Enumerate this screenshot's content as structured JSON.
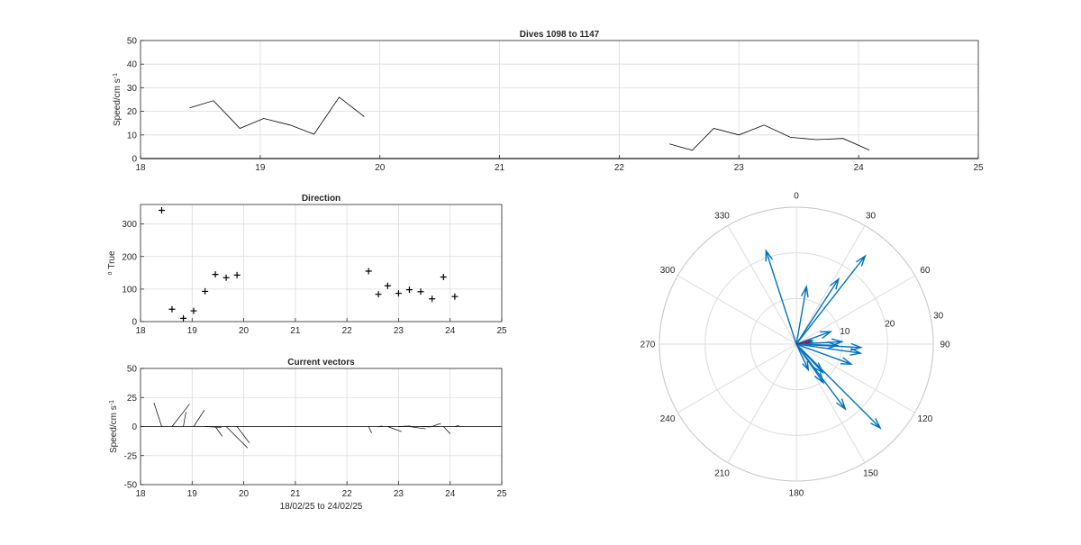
{
  "colors": {
    "axis": "#262626",
    "grid": "#dcdcdc",
    "trace": "#000000",
    "arrow": "#0072bd",
    "mean_arrow": "#a2142f",
    "background": "#ffffff"
  },
  "chart_data": [
    {
      "id": "speed",
      "type": "line",
      "title": "Dives 1098 to 1147",
      "ylabel": "Speed/cm s",
      "ylabel_superscript": "-1",
      "xlim": [
        18,
        25
      ],
      "ylim": [
        0,
        50
      ],
      "xticks": [
        "18",
        "19",
        "20",
        "21",
        "22",
        "23",
        "24",
        "25"
      ],
      "yticks": [
        "0",
        "10",
        "20",
        "30",
        "40",
        "50"
      ],
      "grid": true,
      "series": [
        {
          "x": [
            18.41,
            18.61,
            18.83,
            19.03,
            19.25,
            19.45,
            19.66,
            19.87
          ],
          "y": [
            21.5,
            24.5,
            12.8,
            17,
            14.2,
            10.3,
            26,
            17.8
          ]
        },
        {
          "x": [
            22.42,
            22.61,
            22.79,
            23.0,
            23.21,
            23.43,
            23.65,
            23.87,
            24.09
          ],
          "y": [
            6.2,
            3.5,
            12.8,
            10,
            14.2,
            9,
            8,
            8.5,
            3.6
          ]
        }
      ]
    },
    {
      "id": "direction",
      "type": "scatter",
      "title": "Direction",
      "ylabel": "True",
      "ylabel_prefix": "o",
      "xlim": [
        18,
        25
      ],
      "ylim": [
        0,
        360
      ],
      "xticks": [
        "18",
        "19",
        "20",
        "21",
        "22",
        "23",
        "24",
        "25"
      ],
      "yticks": [
        "0",
        "100",
        "200",
        "300"
      ],
      "grid": true,
      "marker": "+",
      "points": [
        {
          "x": 18.41,
          "y": 342
        },
        {
          "x": 18.61,
          "y": 38
        },
        {
          "x": 18.83,
          "y": 10
        },
        {
          "x": 19.03,
          "y": 33
        },
        {
          "x": 19.25,
          "y": 93
        },
        {
          "x": 19.45,
          "y": 145
        },
        {
          "x": 19.66,
          "y": 135
        },
        {
          "x": 19.87,
          "y": 143
        },
        {
          "x": 22.42,
          "y": 155
        },
        {
          "x": 22.61,
          "y": 84
        },
        {
          "x": 22.79,
          "y": 110
        },
        {
          "x": 23.0,
          "y": 87
        },
        {
          "x": 23.21,
          "y": 98
        },
        {
          "x": 23.43,
          "y": 92
        },
        {
          "x": 23.65,
          "y": 70
        },
        {
          "x": 23.87,
          "y": 137
        },
        {
          "x": 24.09,
          "y": 77
        }
      ]
    },
    {
      "id": "vectors",
      "type": "line",
      "subtype": "stick-plot",
      "title": "Current vectors",
      "ylabel": "Speed/cm s",
      "ylabel_superscript": "-1",
      "xlabel": "18/02/25 to 24/02/25",
      "xlim": [
        18,
        25
      ],
      "ylim": [
        -50,
        50
      ],
      "xticks": [
        "18",
        "19",
        "20",
        "21",
        "22",
        "23",
        "24",
        "25"
      ],
      "yticks": [
        "-50",
        "-25",
        "0",
        "25",
        "50"
      ],
      "grid": true,
      "sticks": [
        {
          "x": 18.41,
          "speed": 21.5,
          "dir": 342
        },
        {
          "x": 18.61,
          "speed": 24.5,
          "dir": 38
        },
        {
          "x": 18.83,
          "speed": 12.8,
          "dir": 10
        },
        {
          "x": 19.03,
          "speed": 17,
          "dir": 33
        },
        {
          "x": 19.25,
          "speed": 14.2,
          "dir": 93
        },
        {
          "x": 19.45,
          "speed": 10.3,
          "dir": 145
        },
        {
          "x": 19.66,
          "speed": 26,
          "dir": 135
        },
        {
          "x": 19.87,
          "speed": 17.8,
          "dir": 143
        },
        {
          "x": 22.42,
          "speed": 6.2,
          "dir": 155
        },
        {
          "x": 22.61,
          "speed": 3.5,
          "dir": 84
        },
        {
          "x": 22.79,
          "speed": 12.8,
          "dir": 110
        },
        {
          "x": 23.0,
          "speed": 10,
          "dir": 87
        },
        {
          "x": 23.21,
          "speed": 14.2,
          "dir": 98
        },
        {
          "x": 23.43,
          "speed": 9,
          "dir": 92
        },
        {
          "x": 23.65,
          "speed": 8,
          "dir": 70
        },
        {
          "x": 23.87,
          "speed": 8.5,
          "dir": 137
        },
        {
          "x": 24.09,
          "speed": 3.6,
          "dir": 77
        }
      ]
    },
    {
      "id": "polar",
      "type": "scatter",
      "subtype": "compass",
      "theta_zero": "top",
      "theta_direction": "clockwise",
      "angle_labels": [
        "0",
        "30",
        "60",
        "90",
        "120",
        "150",
        "180",
        "210",
        "240",
        "270",
        "300",
        "330"
      ],
      "rmax": 30,
      "r_ticks": [
        "10",
        "20",
        "30"
      ],
      "grid": true,
      "vectors": [
        {
          "speed": 21.5,
          "dir": 342
        },
        {
          "speed": 24.5,
          "dir": 38
        },
        {
          "speed": 12.8,
          "dir": 10
        },
        {
          "speed": 17,
          "dir": 33
        },
        {
          "speed": 14.2,
          "dir": 93
        },
        {
          "speed": 10.3,
          "dir": 145
        },
        {
          "speed": 26,
          "dir": 135
        },
        {
          "speed": 17.8,
          "dir": 143
        },
        {
          "speed": 6.2,
          "dir": 155
        },
        {
          "speed": 3.5,
          "dir": 84
        },
        {
          "speed": 12.8,
          "dir": 110
        },
        {
          "speed": 10,
          "dir": 87
        },
        {
          "speed": 14.2,
          "dir": 98
        },
        {
          "speed": 9,
          "dir": 92
        },
        {
          "speed": 8,
          "dir": 70
        },
        {
          "speed": 8.5,
          "dir": 137
        },
        {
          "speed": 3.6,
          "dir": 77
        }
      ],
      "mean_vector": {
        "speed": 3,
        "dir": 80
      }
    }
  ]
}
